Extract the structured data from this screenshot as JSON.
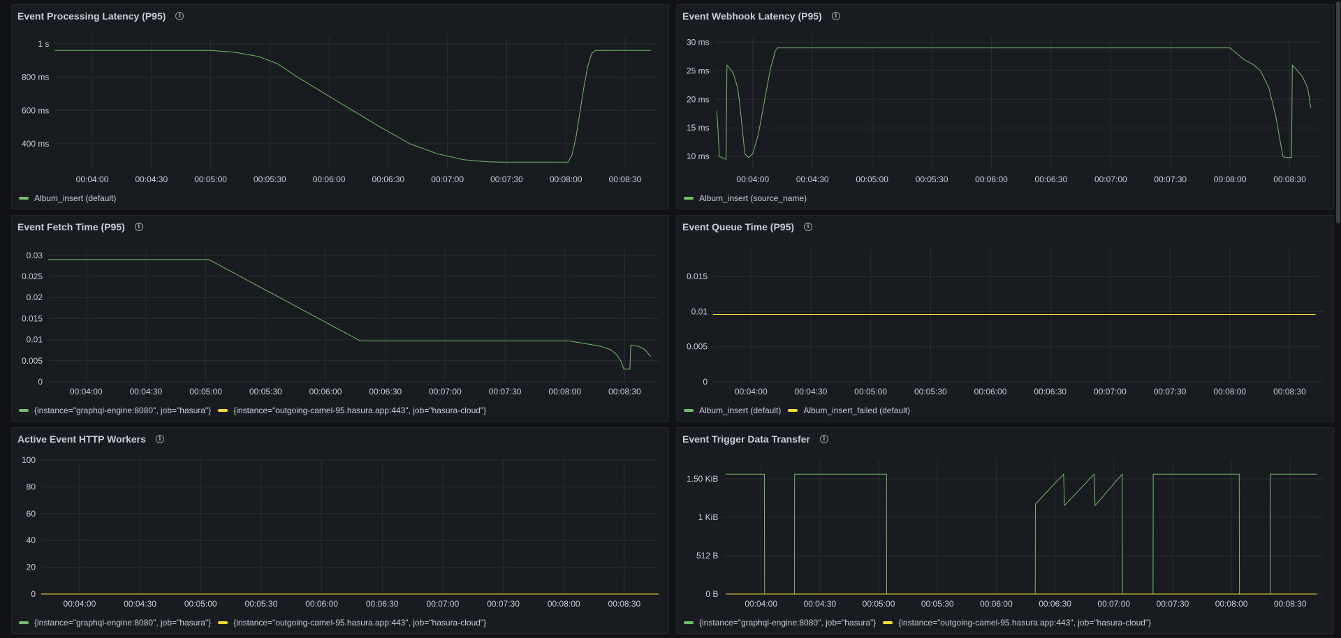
{
  "colors": {
    "green": "#73bf69",
    "yellow": "#fade2a",
    "grid": "#2a2d33"
  },
  "info_icon": "info-circle-icon",
  "chart_data": [
    {
      "type": "line",
      "title": "Event Processing Latency (P95)",
      "xlim": [
        221,
        527
      ],
      "ylim": [
        245,
        1041
      ],
      "x_ticks": [
        {
          "t": 240,
          "label": "00:04:00"
        },
        {
          "t": 270,
          "label": "00:04:30"
        },
        {
          "t": 300,
          "label": "00:05:00"
        },
        {
          "t": 330,
          "label": "00:05:30"
        },
        {
          "t": 360,
          "label": "00:06:00"
        },
        {
          "t": 390,
          "label": "00:06:30"
        },
        {
          "t": 420,
          "label": "00:07:00"
        },
        {
          "t": 450,
          "label": "00:07:30"
        },
        {
          "t": 480,
          "label": "00:08:00"
        },
        {
          "t": 510,
          "label": "00:08:30"
        }
      ],
      "y_ticks": [
        {
          "v": 1000,
          "label": "1 s"
        },
        {
          "v": 800,
          "label": "800 ms"
        },
        {
          "v": 600,
          "label": "600 ms"
        },
        {
          "v": 400,
          "label": "400 ms"
        }
      ],
      "yunit": "ms",
      "series": [
        {
          "name": "Album_insert (default)",
          "color": "#73bf69",
          "points": [
            [
              221,
              960
            ],
            [
              300,
              960
            ],
            [
              312,
              950
            ],
            [
              324,
              925
            ],
            [
              334,
              880
            ],
            [
              344,
              800
            ],
            [
              358,
              700
            ],
            [
              372,
              600
            ],
            [
              386,
              500
            ],
            [
              401,
              400
            ],
            [
              415,
              340
            ],
            [
              428,
              305
            ],
            [
              440,
              292
            ],
            [
              448,
              290
            ],
            [
              481,
              290
            ],
            [
              483,
              330
            ],
            [
              485,
              430
            ],
            [
              487,
              580
            ],
            [
              489,
              730
            ],
            [
              491,
              860
            ],
            [
              493,
              940
            ],
            [
              495,
              960
            ],
            [
              523,
              960
            ]
          ]
        }
      ]
    },
    {
      "type": "line",
      "title": "Event Webhook Latency (P95)",
      "xlim": [
        221,
        527
      ],
      "ylim": [
        7.7,
        30.9
      ],
      "x_ticks": [
        {
          "t": 240,
          "label": "00:04:00"
        },
        {
          "t": 270,
          "label": "00:04:30"
        },
        {
          "t": 300,
          "label": "00:05:00"
        },
        {
          "t": 330,
          "label": "00:05:30"
        },
        {
          "t": 360,
          "label": "00:06:00"
        },
        {
          "t": 390,
          "label": "00:06:30"
        },
        {
          "t": 420,
          "label": "00:07:00"
        },
        {
          "t": 450,
          "label": "00:07:30"
        },
        {
          "t": 480,
          "label": "00:08:00"
        },
        {
          "t": 510,
          "label": "00:08:30"
        }
      ],
      "y_ticks": [
        {
          "v": 30,
          "label": "30 ms"
        },
        {
          "v": 25,
          "label": "25 ms"
        },
        {
          "v": 20,
          "label": "20 ms"
        },
        {
          "v": 15,
          "label": "15 ms"
        },
        {
          "v": 10,
          "label": "10 ms"
        }
      ],
      "yunit": "ms",
      "series": [
        {
          "name": "Album_insert (source_name)",
          "color": "#73bf69",
          "points": [
            [
              221.9,
              18
            ],
            [
              222.5,
              15
            ],
            [
              223.2,
              10
            ],
            [
              226.6,
              9.5
            ],
            [
              227,
              26
            ],
            [
              230.3,
              24.5
            ],
            [
              232.4,
              22
            ],
            [
              233.5,
              19
            ],
            [
              235,
              14
            ],
            [
              236,
              10.5
            ],
            [
              237.9,
              9.8
            ],
            [
              240,
              10.5
            ],
            [
              242.9,
              14
            ],
            [
              245,
              18
            ],
            [
              247.1,
              22
            ],
            [
              249,
              25.5
            ],
            [
              251.4,
              28.5
            ],
            [
              252.5,
              29
            ],
            [
              480,
              29
            ],
            [
              486.8,
              27
            ],
            [
              492,
              26
            ],
            [
              495.3,
              25
            ],
            [
              499.5,
              22
            ],
            [
              503,
              17
            ],
            [
              505,
              13
            ],
            [
              506.6,
              10
            ],
            [
              508,
              9.8
            ],
            [
              510.9,
              9.8
            ],
            [
              511.3,
              26
            ],
            [
              516.4,
              24
            ],
            [
              519,
              22
            ],
            [
              520.6,
              18.5
            ]
          ]
        }
      ]
    },
    {
      "type": "line",
      "title": "Event Fetch Time (P95)",
      "xlim": [
        221,
        527
      ],
      "ylim": [
        0,
        0.0318
      ],
      "x_ticks": [
        {
          "t": 240,
          "label": "00:04:00"
        },
        {
          "t": 270,
          "label": "00:04:30"
        },
        {
          "t": 300,
          "label": "00:05:00"
        },
        {
          "t": 330,
          "label": "00:05:30"
        },
        {
          "t": 360,
          "label": "00:06:00"
        },
        {
          "t": 390,
          "label": "00:06:30"
        },
        {
          "t": 420,
          "label": "00:07:00"
        },
        {
          "t": 450,
          "label": "00:07:30"
        },
        {
          "t": 480,
          "label": "00:08:00"
        },
        {
          "t": 510,
          "label": "00:08:30"
        }
      ],
      "y_ticks": [
        {
          "v": 0.03,
          "label": "0.03"
        },
        {
          "v": 0.025,
          "label": "0.025"
        },
        {
          "v": 0.02,
          "label": "0.02"
        },
        {
          "v": 0.015,
          "label": "0.015"
        },
        {
          "v": 0.01,
          "label": "0.01"
        },
        {
          "v": 0.005,
          "label": "0.005"
        },
        {
          "v": 0,
          "label": "0"
        }
      ],
      "series": [
        {
          "name": "{instance=\"graphql-engine:8080\", job=\"hasura\"}",
          "color": "#73bf69",
          "points": [
            [
              221,
              0.029
            ],
            [
              301.6,
              0.029
            ],
            [
              377.5,
              0.0097
            ],
            [
              482,
              0.0097
            ],
            [
              493.6,
              0.0088
            ],
            [
              498,
              0.0084
            ],
            [
              503,
              0.0076
            ],
            [
              506,
              0.0065
            ],
            [
              508,
              0.005
            ],
            [
              509.6,
              0.003
            ],
            [
              512.6,
              0.003
            ],
            [
              513,
              0.0087
            ],
            [
              517,
              0.0084
            ],
            [
              520,
              0.0077
            ],
            [
              523,
              0.006
            ]
          ]
        },
        {
          "name": "{instance=\"outgoing-camel-95.hasura.app:443\", job=\"hasura-cloud\"}",
          "color": "#fade2a",
          "points": []
        }
      ]
    },
    {
      "type": "line",
      "title": "Event Queue Time (P95)",
      "xlim": [
        221,
        527
      ],
      "ylim": [
        0,
        0.0191
      ],
      "x_ticks": [
        {
          "t": 240,
          "label": "00:04:00"
        },
        {
          "t": 270,
          "label": "00:04:30"
        },
        {
          "t": 300,
          "label": "00:05:00"
        },
        {
          "t": 330,
          "label": "00:05:30"
        },
        {
          "t": 360,
          "label": "00:06:00"
        },
        {
          "t": 390,
          "label": "00:06:30"
        },
        {
          "t": 420,
          "label": "00:07:00"
        },
        {
          "t": 450,
          "label": "00:07:30"
        },
        {
          "t": 480,
          "label": "00:08:00"
        },
        {
          "t": 510,
          "label": "00:08:30"
        }
      ],
      "y_ticks": [
        {
          "v": 0.015,
          "label": "0.015"
        },
        {
          "v": 0.01,
          "label": "0.01"
        },
        {
          "v": 0.005,
          "label": "0.005"
        },
        {
          "v": 0,
          "label": "0"
        }
      ],
      "series": [
        {
          "name": "Album_insert (default)",
          "color": "#73bf69",
          "points": [
            [
              221,
              0.0096
            ],
            [
              523,
              0.0096
            ]
          ]
        },
        {
          "name": "Album_insert_failed (default)",
          "color": "#fade2a",
          "points": [
            [
              221,
              0.0096
            ],
            [
              523,
              0.0096
            ]
          ]
        }
      ]
    },
    {
      "type": "line",
      "title": "Active Event HTTP Workers",
      "xlim": [
        221,
        527
      ],
      "ylim": [
        0,
        100
      ],
      "x_ticks": [
        {
          "t": 240,
          "label": "00:04:00"
        },
        {
          "t": 270,
          "label": "00:04:30"
        },
        {
          "t": 300,
          "label": "00:05:00"
        },
        {
          "t": 330,
          "label": "00:05:30"
        },
        {
          "t": 360,
          "label": "00:06:00"
        },
        {
          "t": 390,
          "label": "00:06:30"
        },
        {
          "t": 420,
          "label": "00:07:00"
        },
        {
          "t": 450,
          "label": "00:07:30"
        },
        {
          "t": 480,
          "label": "00:08:00"
        },
        {
          "t": 510,
          "label": "00:08:30"
        }
      ],
      "y_ticks": [
        {
          "v": 100,
          "label": "100"
        },
        {
          "v": 80,
          "label": "80"
        },
        {
          "v": 60,
          "label": "60"
        },
        {
          "v": 40,
          "label": "40"
        },
        {
          "v": 20,
          "label": "20"
        },
        {
          "v": 0,
          "label": "0"
        }
      ],
      "series": [
        {
          "name": "{instance=\"graphql-engine:8080\", job=\"hasura\"}",
          "color": "#73bf69",
          "points": [
            [
              221,
              0
            ],
            [
              527,
              0
            ]
          ]
        },
        {
          "name": "{instance=\"outgoing-camel-95.hasura.app:443\", job=\"hasura-cloud\"}",
          "color": "#fade2a",
          "points": [
            [
              221,
              0
            ],
            [
              527,
              0
            ]
          ]
        }
      ]
    },
    {
      "type": "line",
      "title": "Event Trigger Data Transfer",
      "xlim": [
        221,
        527
      ],
      "ylim": [
        0,
        1788
      ],
      "x_ticks": [
        {
          "t": 240,
          "label": "00:04:00"
        },
        {
          "t": 270,
          "label": "00:04:30"
        },
        {
          "t": 300,
          "label": "00:05:00"
        },
        {
          "t": 330,
          "label": "00:05:30"
        },
        {
          "t": 360,
          "label": "00:06:00"
        },
        {
          "t": 390,
          "label": "00:06:30"
        },
        {
          "t": 420,
          "label": "00:07:00"
        },
        {
          "t": 450,
          "label": "00:07:30"
        },
        {
          "t": 480,
          "label": "00:08:00"
        },
        {
          "t": 510,
          "label": "00:08:30"
        }
      ],
      "y_ticks": [
        {
          "v": 1536,
          "label": "1.50 KiB"
        },
        {
          "v": 1024,
          "label": "1 KiB"
        },
        {
          "v": 512,
          "label": "512 B"
        },
        {
          "v": 0,
          "label": "0 B"
        }
      ],
      "yunit": "bytes",
      "series": [
        {
          "name": "{instance=\"graphql-engine:8080\", job=\"hasura\"}",
          "color": "#73bf69",
          "points": [
            [
              222,
              1600
            ],
            [
              241.7,
              1600
            ],
            [
              241.8,
              0
            ],
            [
              257,
              0
            ],
            [
              257.1,
              1600
            ],
            [
              304,
              1600
            ],
            [
              304.1,
              0
            ],
            [
              379.9,
              0
            ],
            [
              380,
              1200
            ],
            [
              394.4,
              1600
            ],
            [
              394.8,
              1180
            ],
            [
              410,
              1600
            ],
            [
              410.4,
              1180
            ],
            [
              424.3,
              1600
            ],
            [
              424.4,
              0
            ],
            [
              440,
              0
            ],
            [
              440.1,
              1600
            ],
            [
              484,
              1600
            ],
            [
              484.1,
              0
            ],
            [
              499.8,
              0
            ],
            [
              499.9,
              1600
            ],
            [
              523.6,
              1600
            ]
          ]
        },
        {
          "name": "{instance=\"outgoing-camel-95.hasura.app:443\", job=\"hasura-cloud\"}",
          "color": "#fade2a",
          "points": [
            [
              222,
              0
            ],
            [
              523.6,
              0
            ]
          ]
        }
      ]
    }
  ]
}
